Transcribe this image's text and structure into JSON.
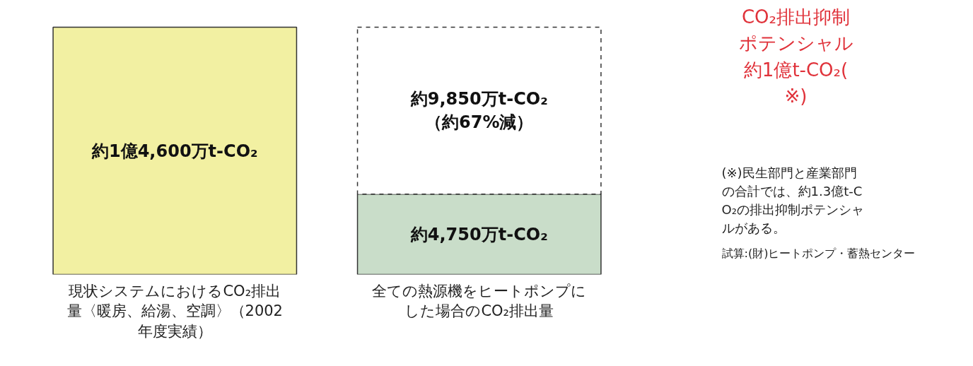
{
  "chart_data": {
    "type": "bar",
    "stacked": true,
    "categories": [
      "現状システムにおけるCO₂排出量〈暖房、給湯、空調〉（2002年度実績）",
      "全ての熱源機をヒートポンプにした場合のCO₂排出量"
    ],
    "series": [
      {
        "colors": [
          "#f2f0a2",
          "#c9ddc9"
        ],
        "values": [
          14600,
          4750
        ],
        "value_labels": [
          "約1億4,600万t-CO₂",
          "約4,750万t-CO₂"
        ]
      },
      {
        "color": "#ffffff",
        "line_style": "dashed",
        "values": [
          null,
          9850
        ],
        "value_labels": [
          null,
          "約9,850万t-CO₂\n（約67%減）"
        ]
      }
    ],
    "annotations": [
      "CO₂排出抑制ポテンシャル約1億t-CO₂(※)",
      "(※)民生部門と産業部門の合計では、約1.3億t-CO₂の排出抑制ポテンシャルがある。",
      "試算:(財)ヒートポンプ・蓄熱センター"
    ],
    "tick_labels": "x",
    "grid": false
  }
}
